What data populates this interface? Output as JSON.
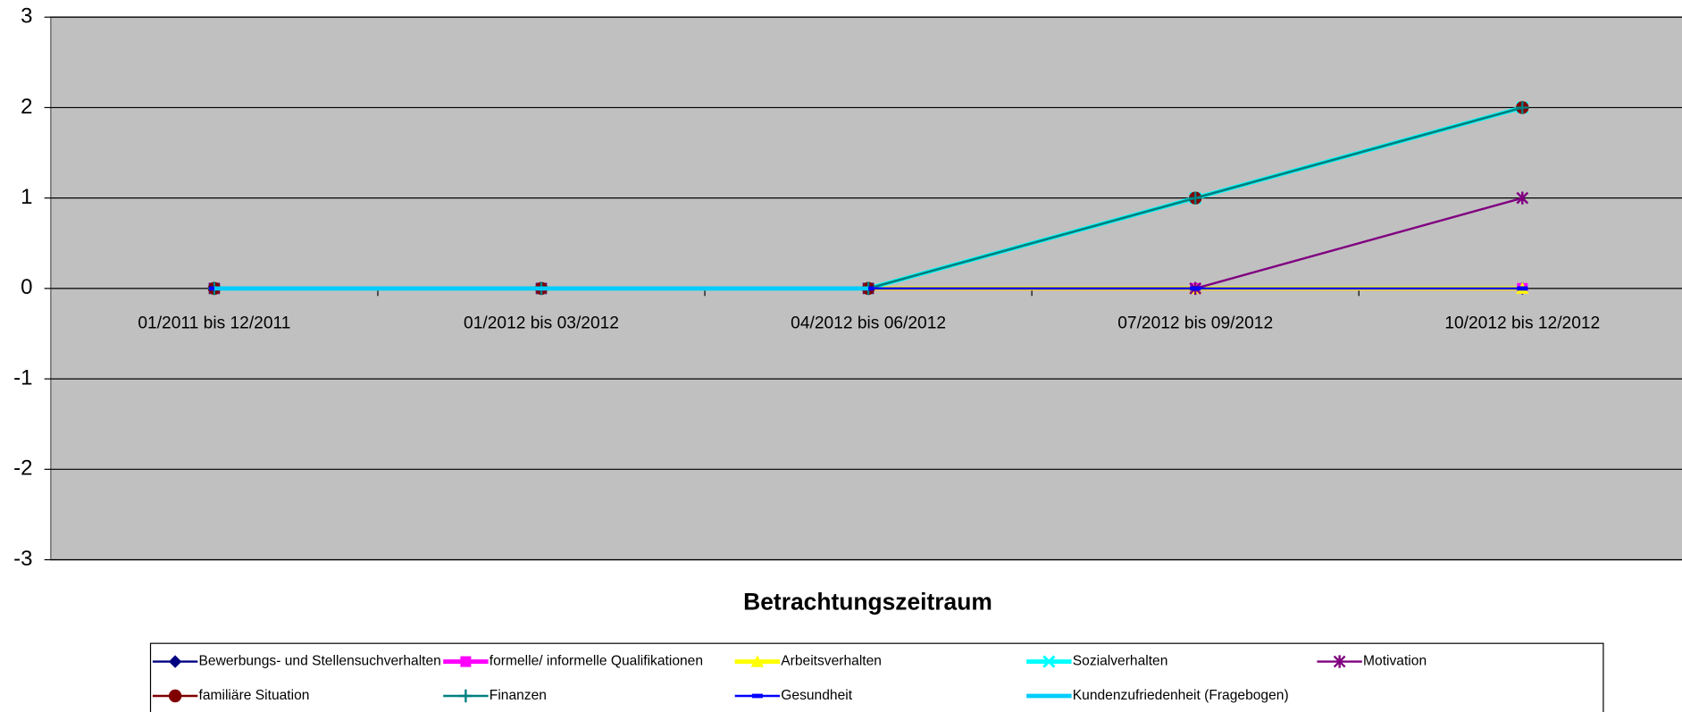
{
  "chart_data": {
    "type": "line",
    "x_label": "Betrachtungszeitraum",
    "categories": [
      "01/2011 bis 12/2011",
      "01/2012 bis 03/2012",
      "04/2012 bis 06/2012",
      "07/2012 bis 09/2012",
      "10/2012 bis 12/2012"
    ],
    "ylim": [
      -3,
      3
    ],
    "yticks": [
      -3,
      -2,
      -1,
      0,
      1,
      2,
      3
    ],
    "grid": true,
    "legend": "bottom",
    "series": [
      {
        "name": "Bewerbungs- und Stellensuchverhalten",
        "color": "#000080",
        "marker": "diamond",
        "width": 2,
        "values": [
          0,
          0,
          0,
          0,
          0
        ]
      },
      {
        "name": "formelle/ informelle Qualifikationen",
        "color": "#ff00ff",
        "marker": "square",
        "width": 4,
        "values": [
          0,
          0,
          0,
          0,
          0
        ]
      },
      {
        "name": "Arbeitsverhalten",
        "color": "#ffff00",
        "marker": "triangle",
        "width": 4,
        "values": [
          0,
          0,
          0,
          0,
          0
        ]
      },
      {
        "name": "Sozialverhalten",
        "color": "#00ffff",
        "marker": "x",
        "width": 4,
        "values": [
          0,
          0,
          0,
          1,
          2
        ]
      },
      {
        "name": "Motivation",
        "color": "#800080",
        "marker": "star",
        "width": 2,
        "values": [
          0,
          0,
          0,
          0,
          1
        ]
      },
      {
        "name": "familiäre Situation",
        "color": "#800000",
        "marker": "circle",
        "width": 2,
        "values": [
          0,
          0,
          0,
          1,
          2
        ]
      },
      {
        "name": "Finanzen",
        "color": "#008080",
        "marker": "plus",
        "width": 2,
        "values": [
          0,
          0,
          0,
          1,
          2
        ]
      },
      {
        "name": "Gesundheit",
        "color": "#0000ff",
        "marker": "dash",
        "width": 2,
        "values": [
          0,
          0,
          0,
          0,
          0
        ]
      },
      {
        "name": "Kundenzufriedenheit (Fragebogen)",
        "color": "#00ccff",
        "marker": "none",
        "width": 4,
        "values": [
          0,
          0,
          0,
          null,
          null
        ]
      }
    ]
  }
}
